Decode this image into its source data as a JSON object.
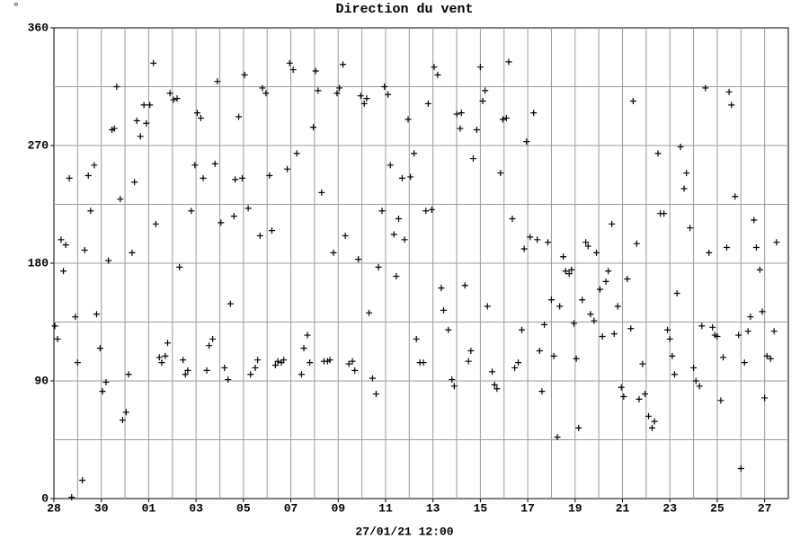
{
  "chart_data": {
    "type": "scatter",
    "title": "Direction du vent",
    "unit": "°",
    "xlabel": "27/01/21 12:00",
    "xlim": [
      0,
      31
    ],
    "ylim": [
      0,
      360
    ],
    "yticks": [
      0,
      90,
      180,
      270,
      360
    ],
    "ygrid": [
      45,
      90,
      135,
      180,
      225,
      270,
      315
    ],
    "xticks": [
      {
        "value": 0,
        "label": "28"
      },
      {
        "value": 2,
        "label": "30"
      },
      {
        "value": 4,
        "label": "01"
      },
      {
        "value": 6,
        "label": "03"
      },
      {
        "value": 8,
        "label": "05"
      },
      {
        "value": 10,
        "label": "07"
      },
      {
        "value": 12,
        "label": "09"
      },
      {
        "value": 14,
        "label": "11"
      },
      {
        "value": 16,
        "label": "13"
      },
      {
        "value": 18,
        "label": "15"
      },
      {
        "value": 20,
        "label": "17"
      },
      {
        "value": 22,
        "label": "19"
      },
      {
        "value": 24,
        "label": "21"
      },
      {
        "value": 26,
        "label": "23"
      },
      {
        "value": 28,
        "label": "25"
      },
      {
        "value": 30,
        "label": "27"
      }
    ],
    "xgrid": [
      1,
      2,
      3,
      4,
      5,
      6,
      7,
      8,
      9,
      10,
      11,
      12,
      13,
      14,
      15,
      16,
      17,
      18,
      19,
      20,
      21,
      22,
      23,
      24,
      25,
      26,
      27,
      28,
      29,
      30
    ],
    "grid": true,
    "color": "#000000",
    "x": [
      0.04,
      0.15,
      0.3,
      0.4,
      0.5,
      0.65,
      0.75,
      0.9,
      1.0,
      1.2,
      1.3,
      1.45,
      1.55,
      1.7,
      1.8,
      1.95,
      2.05,
      2.2,
      2.3,
      2.45,
      2.55,
      2.65,
      2.8,
      2.9,
      3.05,
      3.15,
      3.3,
      3.4,
      3.5,
      3.65,
      3.8,
      3.9,
      4.05,
      4.2,
      4.3,
      4.45,
      4.55,
      4.7,
      4.8,
      4.9,
      5.05,
      5.2,
      5.3,
      5.45,
      5.55,
      5.65,
      5.8,
      5.95,
      6.05,
      6.2,
      6.3,
      6.45,
      6.55,
      6.7,
      6.8,
      6.9,
      7.05,
      7.2,
      7.35,
      7.45,
      7.6,
      7.65,
      7.8,
      7.95,
      8.05,
      8.2,
      8.3,
      8.5,
      8.6,
      8.7,
      8.8,
      8.95,
      9.1,
      9.2,
      9.35,
      9.45,
      9.6,
      9.7,
      9.85,
      9.95,
      10.1,
      10.25,
      10.45,
      10.55,
      10.7,
      10.8,
      10.95,
      11.05,
      11.15,
      11.3,
      11.4,
      11.55,
      11.65,
      11.8,
      11.95,
      12.05,
      12.2,
      12.3,
      12.45,
      12.6,
      12.7,
      12.85,
      12.95,
      13.1,
      13.2,
      13.3,
      13.45,
      13.6,
      13.7,
      13.85,
      13.95,
      14.1,
      14.2,
      14.35,
      14.45,
      14.55,
      14.7,
      14.8,
      14.95,
      15.05,
      15.2,
      15.3,
      15.45,
      15.6,
      15.7,
      15.8,
      15.95,
      16.05,
      16.2,
      16.35,
      16.45,
      16.65,
      16.8,
      16.9,
      17.0,
      17.15,
      17.2,
      17.35,
      17.5,
      17.6,
      17.7,
      17.85,
      18.0,
      18.1,
      18.2,
      18.3,
      18.5,
      18.6,
      18.7,
      18.85,
      18.95,
      19.1,
      19.2,
      19.35,
      19.45,
      19.6,
      19.75,
      19.85,
      19.95,
      20.1,
      20.25,
      20.4,
      20.5,
      20.6,
      20.7,
      20.85,
      21.0,
      21.1,
      21.25,
      21.35,
      21.5,
      21.6,
      21.75,
      21.85,
      21.95,
      22.05,
      22.15,
      22.3,
      22.45,
      22.55,
      22.65,
      22.8,
      22.9,
      23.05,
      23.15,
      23.3,
      23.4,
      23.55,
      23.65,
      23.8,
      23.95,
      24.05,
      24.2,
      24.35,
      24.45,
      24.6,
      24.7,
      24.85,
      24.95,
      25.1,
      25.25,
      25.35,
      25.5,
      25.6,
      25.75,
      25.9,
      26.0,
      26.1,
      26.2,
      26.3,
      26.45,
      26.6,
      26.7,
      26.85,
      27.0,
      27.1,
      27.25,
      27.35,
      27.5,
      27.65,
      27.8,
      27.9,
      28.0,
      28.15,
      28.25,
      28.4,
      28.5,
      28.6,
      28.75,
      28.9,
      29.0,
      29.15,
      29.3,
      29.4,
      29.55,
      29.65,
      29.8,
      29.9,
      30.0,
      30.1,
      30.25,
      30.4,
      30.5
    ],
    "values": [
      132,
      122,
      198,
      174,
      194,
      245,
      1,
      139,
      104,
      14,
      190,
      247,
      220,
      255,
      141,
      115,
      82,
      89,
      182,
      282,
      283,
      315,
      229,
      60,
      66,
      95,
      188,
      242,
      289,
      277,
      301,
      287,
      301,
      333,
      210,
      108,
      104,
      109,
      119,
      310,
      305,
      306,
      177,
      106,
      95,
      98,
      220,
      255,
      295,
      291,
      245,
      98,
      117,
      122,
      256,
      319,
      211,
      100,
      91,
      149,
      216,
      244,
      292,
      245,
      324,
      222,
      95,
      100,
      106,
      201,
      314,
      310,
      247,
      205,
      102,
      105,
      104,
      106,
      252,
      333,
      328,
      264,
      95,
      115,
      125,
      104,
      284,
      327,
      312,
      234,
      105,
      105,
      106,
      188,
      310,
      314,
      332,
      201,
      103,
      105,
      98,
      183,
      308,
      302,
      306,
      142,
      92,
      80,
      177,
      220,
      315,
      309,
      255,
      202,
      170,
      214,
      245,
      198,
      290,
      246,
      264,
      122,
      104,
      104,
      220,
      302,
      221,
      330,
      324,
      161,
      144,
      129,
      91,
      86,
      294,
      283,
      295,
      163,
      105,
      113,
      260,
      282,
      330,
      304,
      312,
      147,
      97,
      87,
      84,
      249,
      290,
      291,
      334,
      214,
      100,
      104,
      129,
      191,
      273,
      200,
      295,
      198,
      113,
      82,
      133,
      196,
      152,
      109,
      47,
      147,
      185,
      174,
      172,
      175,
      134,
      107,
      54,
      152,
      196,
      193,
      141,
      136,
      188,
      160,
      124,
      166,
      174,
      210,
      126,
      147,
      85,
      78,
      168,
      130,
      304,
      195,
      76,
      103,
      80,
      63,
      54,
      59,
      264,
      218,
      218,
      129,
      122,
      109,
      95,
      157,
      269,
      237,
      249,
      207,
      100,
      90,
      86,
      132,
      314,
      188,
      131,
      125,
      124,
      75,
      108,
      192,
      311,
      301,
      231,
      125,
      23,
      104,
      128,
      139,
      213,
      192,
      175,
      143,
      77,
      109,
      107,
      128,
      196
    ]
  }
}
